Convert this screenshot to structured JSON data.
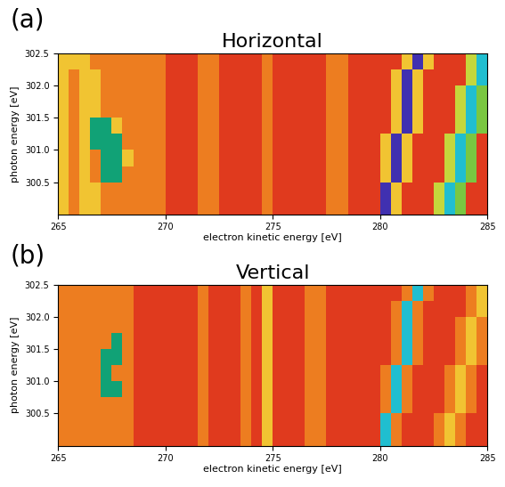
{
  "chart_data": [
    {
      "type": "heatmap",
      "panel_label": "(a)",
      "title": "Horizontal",
      "x_label": "electron kinetic energy [eV]",
      "y_label": "photon energy [eV]",
      "xlim": [
        265,
        285
      ],
      "ylim": [
        300.0,
        302.5
      ],
      "xticks": [
        265,
        270,
        275,
        280,
        285
      ],
      "yticks": [
        300.5,
        {
          "value": 301.0,
          "label": "301.0"
        },
        301.5,
        {
          "value": 302.0,
          "label": "302.0"
        },
        302.5
      ],
      "x_edges": [
        265,
        265.5,
        266,
        266.5,
        267,
        267.5,
        268,
        268.5,
        269,
        269.5,
        270,
        270.5,
        271,
        271.5,
        272,
        272.5,
        273,
        273.5,
        274,
        274.5,
        275,
        275.5,
        276,
        276.5,
        277,
        277.5,
        278,
        278.5,
        279,
        279.5,
        280,
        280.5,
        281,
        281.5,
        282,
        282.5,
        283,
        283.5,
        284,
        284.5,
        285
      ],
      "y_edges": [
        300.0,
        300.25,
        300.5,
        300.75,
        301.0,
        301.25,
        301.5,
        301.75,
        302.0,
        302.25,
        302.5
      ],
      "cells": [
        [
          4,
          3,
          4,
          4,
          3,
          3,
          3,
          3,
          3,
          3,
          2,
          2,
          2,
          3,
          3,
          2,
          2,
          2,
          2,
          3,
          2,
          2,
          2,
          2,
          2,
          3,
          3,
          2,
          2,
          2,
          10,
          4,
          2,
          2,
          2,
          5,
          8,
          6,
          2,
          2
        ],
        [
          4,
          3,
          4,
          4,
          3,
          3,
          3,
          3,
          3,
          3,
          2,
          2,
          2,
          3,
          3,
          2,
          2,
          2,
          2,
          3,
          2,
          2,
          2,
          2,
          2,
          3,
          3,
          2,
          2,
          2,
          10,
          4,
          2,
          2,
          2,
          5,
          8,
          6,
          2,
          2
        ],
        [
          4,
          3,
          4,
          3,
          7,
          7,
          3,
          3,
          3,
          3,
          2,
          2,
          2,
          3,
          3,
          2,
          2,
          2,
          2,
          3,
          2,
          2,
          2,
          2,
          2,
          3,
          3,
          2,
          2,
          2,
          4,
          10,
          4,
          2,
          2,
          2,
          5,
          8,
          6,
          2
        ],
        [
          4,
          3,
          4,
          3,
          7,
          7,
          4,
          3,
          3,
          3,
          2,
          2,
          2,
          3,
          3,
          2,
          2,
          2,
          2,
          3,
          2,
          2,
          2,
          2,
          2,
          3,
          3,
          2,
          2,
          2,
          4,
          10,
          4,
          2,
          2,
          2,
          5,
          8,
          6,
          2
        ],
        [
          4,
          3,
          4,
          7,
          7,
          7,
          3,
          3,
          3,
          3,
          2,
          2,
          2,
          3,
          3,
          2,
          2,
          2,
          2,
          3,
          2,
          2,
          2,
          2,
          2,
          3,
          3,
          2,
          2,
          2,
          4,
          10,
          4,
          2,
          2,
          2,
          5,
          8,
          6,
          2
        ],
        [
          4,
          3,
          4,
          7,
          7,
          4,
          3,
          3,
          3,
          3,
          2,
          2,
          2,
          3,
          3,
          2,
          2,
          2,
          2,
          3,
          2,
          2,
          2,
          2,
          2,
          3,
          3,
          2,
          2,
          2,
          2,
          4,
          10,
          4,
          2,
          2,
          2,
          5,
          8,
          6
        ],
        [
          4,
          3,
          4,
          4,
          3,
          3,
          3,
          3,
          3,
          3,
          2,
          2,
          2,
          3,
          3,
          2,
          2,
          2,
          2,
          3,
          2,
          2,
          2,
          2,
          2,
          3,
          3,
          2,
          2,
          2,
          2,
          4,
          10,
          4,
          2,
          2,
          2,
          5,
          8,
          6
        ],
        [
          4,
          3,
          4,
          4,
          3,
          3,
          3,
          3,
          3,
          3,
          2,
          2,
          2,
          3,
          3,
          2,
          2,
          2,
          2,
          3,
          2,
          2,
          2,
          2,
          2,
          3,
          3,
          2,
          2,
          2,
          2,
          4,
          10,
          4,
          2,
          2,
          2,
          5,
          8,
          6
        ],
        [
          4,
          3,
          4,
          4,
          3,
          3,
          3,
          3,
          3,
          3,
          2,
          2,
          2,
          3,
          3,
          2,
          2,
          2,
          2,
          3,
          2,
          2,
          2,
          2,
          2,
          3,
          3,
          2,
          2,
          2,
          2,
          4,
          10,
          4,
          2,
          2,
          2,
          2,
          5,
          8
        ],
        [
          4,
          4,
          4,
          3,
          3,
          3,
          3,
          3,
          3,
          3,
          2,
          2,
          2,
          3,
          3,
          2,
          2,
          2,
          2,
          3,
          2,
          2,
          2,
          2,
          2,
          3,
          3,
          2,
          2,
          2,
          2,
          2,
          4,
          10,
          4,
          2,
          2,
          2,
          5,
          8
        ]
      ]
    },
    {
      "type": "heatmap",
      "panel_label": "(b)",
      "title": "Vertical",
      "x_label": "electron kinetic energy [eV]",
      "y_label": "photon energy [eV]",
      "xlim": [
        265,
        285
      ],
      "ylim": [
        300.0,
        302.5
      ],
      "xticks": [
        265,
        270,
        275,
        280,
        285
      ],
      "yticks": [
        300.5,
        {
          "value": 301.0,
          "label": "301.0"
        },
        301.5,
        {
          "value": 302.0,
          "label": "302.0"
        },
        302.5
      ],
      "x_edges": [
        265,
        265.5,
        266,
        266.5,
        267,
        267.5,
        268,
        268.5,
        269,
        269.5,
        270,
        270.5,
        271,
        271.5,
        272,
        272.5,
        273,
        273.5,
        274,
        274.5,
        275,
        275.5,
        276,
        276.5,
        277,
        277.5,
        278,
        278.5,
        279,
        279.5,
        280,
        280.5,
        281,
        281.5,
        282,
        282.5,
        283,
        283.5,
        284,
        284.5,
        285
      ],
      "y_edges": [
        300.0,
        300.25,
        300.5,
        300.75,
        301.0,
        301.25,
        301.5,
        301.75,
        302.0,
        302.25,
        302.5
      ],
      "cells": [
        [
          3,
          3,
          3,
          3,
          3,
          3,
          3,
          2,
          2,
          2,
          2,
          2,
          2,
          3,
          2,
          2,
          2,
          3,
          2,
          4,
          2,
          2,
          2,
          3,
          3,
          2,
          2,
          2,
          2,
          2,
          8,
          3,
          2,
          2,
          2,
          3,
          4,
          3,
          2,
          2
        ],
        [
          3,
          3,
          3,
          3,
          3,
          3,
          3,
          2,
          2,
          2,
          2,
          2,
          2,
          3,
          2,
          2,
          2,
          3,
          2,
          4,
          2,
          2,
          2,
          3,
          3,
          2,
          2,
          2,
          2,
          2,
          8,
          3,
          2,
          2,
          2,
          3,
          4,
          3,
          2,
          2
        ],
        [
          3,
          3,
          3,
          3,
          3,
          3,
          3,
          2,
          2,
          2,
          2,
          2,
          2,
          3,
          2,
          2,
          2,
          3,
          2,
          4,
          2,
          2,
          2,
          3,
          3,
          2,
          2,
          2,
          2,
          2,
          3,
          8,
          3,
          2,
          2,
          2,
          3,
          4,
          3,
          2
        ],
        [
          3,
          3,
          3,
          3,
          7,
          7,
          3,
          2,
          2,
          2,
          2,
          2,
          2,
          3,
          2,
          2,
          2,
          3,
          2,
          4,
          2,
          2,
          2,
          3,
          3,
          2,
          2,
          2,
          2,
          2,
          3,
          8,
          3,
          2,
          2,
          2,
          3,
          4,
          3,
          2
        ],
        [
          3,
          3,
          3,
          3,
          7,
          3,
          3,
          2,
          2,
          2,
          2,
          2,
          2,
          3,
          2,
          2,
          2,
          3,
          2,
          4,
          2,
          2,
          2,
          3,
          3,
          2,
          2,
          2,
          2,
          2,
          3,
          8,
          3,
          2,
          2,
          2,
          3,
          4,
          3,
          2
        ],
        [
          3,
          3,
          3,
          3,
          7,
          7,
          3,
          2,
          2,
          2,
          2,
          2,
          2,
          3,
          2,
          2,
          2,
          3,
          2,
          4,
          2,
          2,
          2,
          3,
          3,
          2,
          2,
          2,
          2,
          2,
          2,
          3,
          8,
          3,
          2,
          2,
          2,
          3,
          4,
          3
        ],
        [
          3,
          3,
          3,
          3,
          3,
          7,
          3,
          2,
          2,
          2,
          2,
          2,
          2,
          3,
          2,
          2,
          2,
          3,
          2,
          4,
          2,
          2,
          2,
          3,
          3,
          2,
          2,
          2,
          2,
          2,
          2,
          3,
          8,
          3,
          2,
          2,
          2,
          3,
          4,
          3
        ],
        [
          3,
          3,
          3,
          3,
          3,
          3,
          3,
          2,
          2,
          2,
          2,
          2,
          2,
          3,
          2,
          2,
          2,
          3,
          2,
          4,
          2,
          2,
          2,
          3,
          3,
          2,
          2,
          2,
          2,
          2,
          2,
          3,
          8,
          3,
          2,
          2,
          2,
          3,
          4,
          3
        ],
        [
          3,
          3,
          3,
          3,
          3,
          3,
          3,
          2,
          2,
          2,
          2,
          2,
          2,
          3,
          2,
          2,
          2,
          3,
          2,
          4,
          2,
          2,
          2,
          3,
          3,
          2,
          2,
          2,
          2,
          2,
          2,
          3,
          8,
          3,
          2,
          2,
          2,
          2,
          3,
          4
        ],
        [
          3,
          3,
          3,
          3,
          3,
          3,
          3,
          2,
          2,
          2,
          2,
          2,
          2,
          3,
          2,
          2,
          2,
          3,
          2,
          4,
          2,
          2,
          2,
          3,
          3,
          2,
          2,
          2,
          2,
          2,
          2,
          2,
          3,
          8,
          3,
          2,
          2,
          2,
          3,
          4
        ]
      ]
    }
  ]
}
